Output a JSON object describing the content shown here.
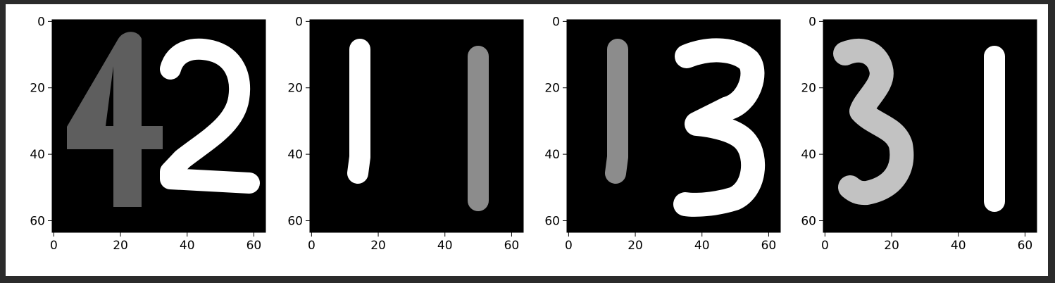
{
  "figure": {
    "background": "#ffffff",
    "window_background": "#2b2b2b"
  },
  "chart_data": [
    {
      "type": "heatmap",
      "colormap": "gray",
      "content": "rendered digits \"4\" and \"2\"",
      "digits": [
        {
          "glyph": "4",
          "gray": 0.37,
          "x": [
            4,
            31
          ],
          "y": [
            3,
            56
          ]
        },
        {
          "glyph": "2",
          "gray": 1.0,
          "x": [
            32,
            61
          ],
          "y": [
            6,
            52
          ]
        }
      ],
      "xlim": [
        -0.5,
        63.5
      ],
      "ylim": [
        63.5,
        -0.5
      ],
      "xticks": [
        0,
        20,
        40,
        60
      ],
      "yticks": [
        0,
        20,
        40,
        60
      ],
      "xtick_labels": [
        "0",
        "20",
        "40",
        "60"
      ],
      "ytick_labels": [
        "0",
        "20",
        "40",
        "60"
      ],
      "grid": false
    },
    {
      "type": "heatmap",
      "colormap": "gray",
      "content": "rendered digits \"1\" and \"1\"",
      "digits": [
        {
          "glyph": "1",
          "gray": 1.0,
          "x": [
            10,
            19
          ],
          "y": [
            5,
            49
          ]
        },
        {
          "glyph": "1",
          "gray": 0.55,
          "x": [
            47,
            54
          ],
          "y": [
            7,
            56
          ]
        }
      ],
      "xlim": [
        -0.5,
        63.5
      ],
      "ylim": [
        63.5,
        -0.5
      ],
      "xticks": [
        0,
        20,
        40,
        60
      ],
      "yticks": [
        0,
        20,
        40,
        60
      ],
      "xtick_labels": [
        "0",
        "20",
        "40",
        "60"
      ],
      "ytick_labels": [
        "0",
        "20",
        "40",
        "60"
      ],
      "grid": false
    },
    {
      "type": "heatmap",
      "colormap": "gray",
      "content": "rendered digits \"1\" and \"3\"",
      "digits": [
        {
          "glyph": "1",
          "gray": 0.55,
          "x": [
            10,
            18
          ],
          "y": [
            5,
            49
          ]
        },
        {
          "glyph": "3",
          "gray": 1.0,
          "x": [
            33,
            59
          ],
          "y": [
            5,
            56
          ]
        }
      ],
      "xlim": [
        -0.5,
        63.5
      ],
      "ylim": [
        63.5,
        -0.5
      ],
      "xticks": [
        0,
        20,
        40,
        60
      ],
      "yticks": [
        0,
        20,
        40,
        60
      ],
      "xtick_labels": [
        "0",
        "20",
        "40",
        "60"
      ],
      "ytick_labels": [
        "0",
        "20",
        "40",
        "60"
      ],
      "grid": false
    },
    {
      "type": "heatmap",
      "colormap": "gray",
      "content": "rendered digits \"3\" and \"1\"",
      "digits": [
        {
          "glyph": "3",
          "gray": 0.76,
          "x": [
            3,
            29
          ],
          "y": [
            5,
            54
          ]
        },
        {
          "glyph": "1",
          "gray": 1.0,
          "x": [
            47,
            54
          ],
          "y": [
            7,
            56
          ]
        }
      ],
      "xlim": [
        -0.5,
        63.5
      ],
      "ylim": [
        63.5,
        -0.5
      ],
      "xticks": [
        0,
        20,
        40,
        60
      ],
      "yticks": [
        0,
        20,
        40,
        60
      ],
      "xtick_labels": [
        "0",
        "20",
        "40",
        "60"
      ],
      "ytick_labels": [
        "0",
        "20",
        "40",
        "60"
      ],
      "grid": false
    }
  ]
}
